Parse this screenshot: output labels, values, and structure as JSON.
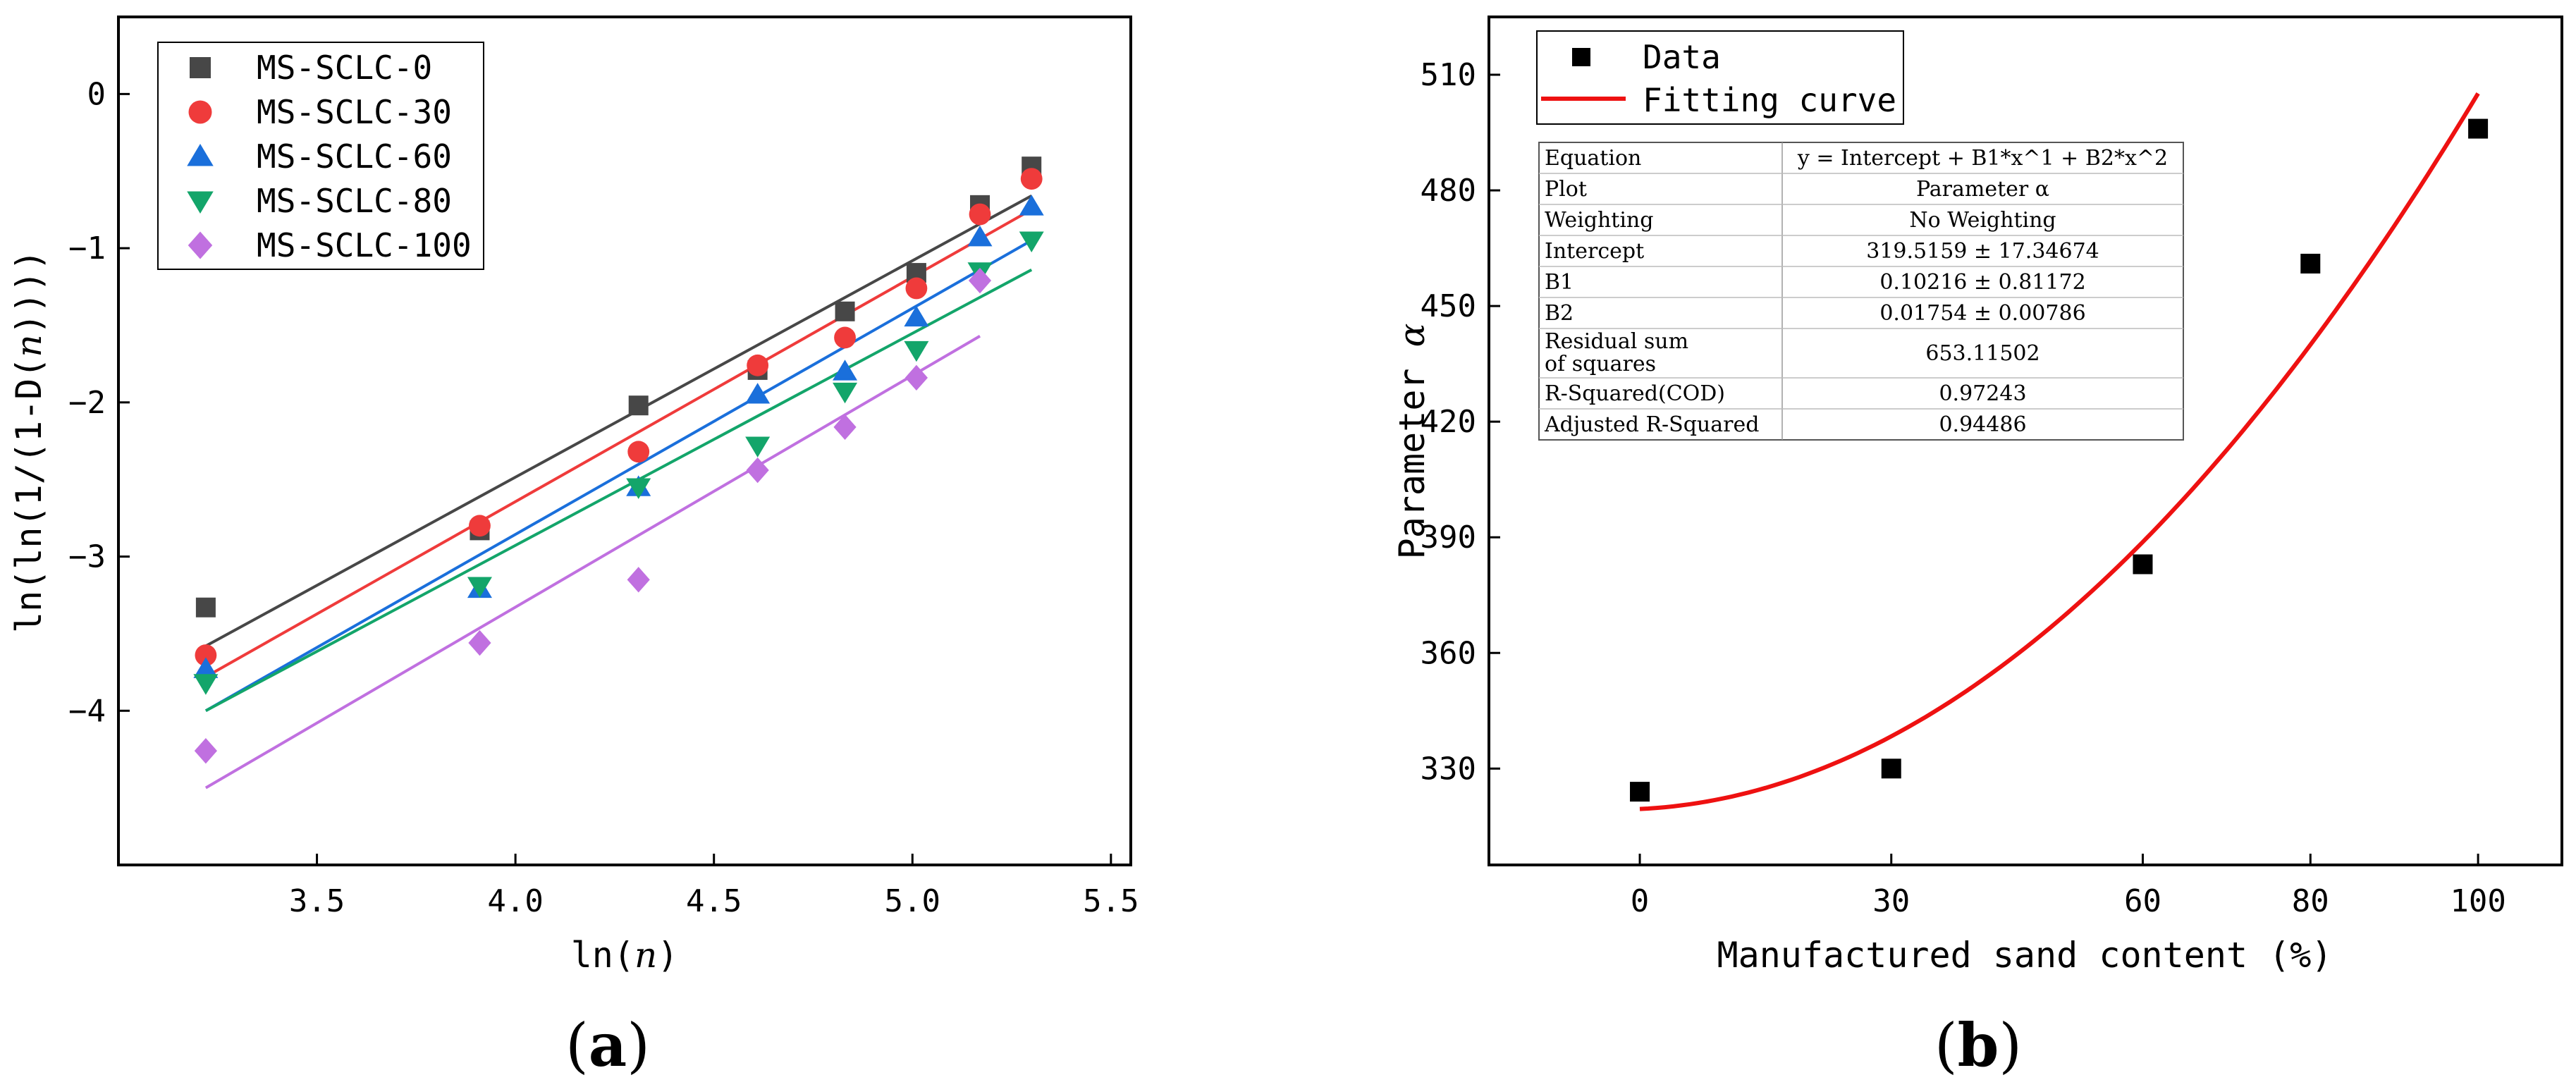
{
  "chart_data": [
    {
      "panel_label": "a",
      "type": "scatter",
      "xlabel_prefix": "ln(",
      "xlabel_var": "n",
      "xlabel_suffix": ")",
      "ylabel_prefix": "ln(ln(1/(1-D(",
      "ylabel_var": "n",
      "ylabel_suffix": "))))",
      "xlim": [
        3.0,
        5.55
      ],
      "ylim": [
        -5.0,
        0.5
      ],
      "xticks": [
        3.5,
        4.0,
        4.5,
        5.0,
        5.5
      ],
      "xtick_labels": [
        "3.5",
        "4.0",
        "4.5",
        "5.0",
        "5.5"
      ],
      "yticks": [
        0,
        -1,
        -2,
        -3,
        -4
      ],
      "ytick_labels": [
        "0",
        "−1",
        "−2",
        "−3",
        "−4"
      ],
      "legend_position": "top-left",
      "x": [
        3.22,
        3.91,
        4.31,
        4.61,
        4.83,
        5.01,
        5.17,
        5.3
      ],
      "series": [
        {
          "name": "MS-SCLC-0",
          "marker": "square",
          "color": "#474747",
          "values": [
            -3.33,
            -2.83,
            -2.02,
            -1.79,
            -1.41,
            -1.16,
            -0.72,
            -0.47
          ],
          "fit": {
            "x": [
              3.22,
              5.3
            ],
            "y": [
              -3.58,
              -0.66
            ]
          }
        },
        {
          "name": "MS-SCLC-30",
          "marker": "circle",
          "color": "#ef3b3b",
          "values": [
            -3.64,
            -2.8,
            -2.32,
            -1.76,
            -1.58,
            -1.26,
            -0.78,
            -0.55
          ],
          "fit": {
            "x": [
              3.22,
              5.3
            ],
            "y": [
              -3.78,
              -0.75
            ]
          }
        },
        {
          "name": "MS-SCLC-60",
          "marker": "triangle-up",
          "color": "#1a6fdb",
          "values": [
            -3.73,
            -3.21,
            -2.55,
            -1.95,
            -1.8,
            -1.45,
            -0.93,
            -0.73
          ],
          "fit": {
            "x": [
              3.22,
              5.3
            ],
            "y": [
              -4.0,
              -0.95
            ]
          }
        },
        {
          "name": "MS-SCLC-80",
          "marker": "triangle-down",
          "color": "#13a56a",
          "values": [
            -3.82,
            -3.19,
            -2.55,
            -2.28,
            -1.93,
            -1.66,
            -1.15,
            -0.95
          ],
          "fit": {
            "x": [
              3.22,
              5.3
            ],
            "y": [
              -4.0,
              -1.14
            ]
          }
        },
        {
          "name": "MS-SCLC-100",
          "marker": "diamond",
          "color": "#c070e0",
          "values": [
            -4.26,
            -3.56,
            -3.15,
            -2.44,
            -2.16,
            -1.84,
            -1.21,
            null
          ],
          "fit": {
            "x": [
              3.22,
              5.17
            ],
            "y": [
              -4.5,
              -1.57
            ]
          }
        }
      ]
    },
    {
      "panel_label": "b",
      "type": "scatter",
      "xlabel": "Manufactured sand content (%)",
      "ylabel_prefix": "Parameter  ",
      "ylabel_var": "α",
      "xlim": [
        -18,
        110
      ],
      "ylim": [
        305,
        525
      ],
      "xticks": [
        0,
        30,
        60,
        80,
        100
      ],
      "xtick_labels": [
        "0",
        "30",
        "60",
        "80",
        "100"
      ],
      "yticks": [
        330,
        360,
        390,
        420,
        450,
        480,
        510
      ],
      "ytick_labels": [
        "330",
        "360",
        "390",
        "420",
        "450",
        "480",
        "510"
      ],
      "legend_position": "top-left",
      "legend": [
        "Data",
        "Fitting curve"
      ],
      "data_color": "#000000",
      "fit_color": "#ee1111",
      "x": [
        0,
        30,
        60,
        80,
        100
      ],
      "values": [
        324,
        330,
        383,
        461,
        496
      ],
      "fit": {
        "intercept": 319.5159,
        "b1": 0.10216,
        "b2": 0.01754,
        "x_range": [
          0,
          100
        ]
      },
      "table": [
        [
          "Equation",
          "y = Intercept + B1*x^1 + B2*x^2"
        ],
        [
          "Plot",
          "Parameter  α"
        ],
        [
          "Weighting",
          "No Weighting"
        ],
        [
          "Intercept",
          "319.5159 ± 17.34674"
        ],
        [
          "B1",
          "0.10216 ± 0.81172"
        ],
        [
          "B2",
          "0.01754 ± 0.00786"
        ],
        [
          "Residual sum\nof squares",
          "653.11502"
        ],
        [
          "R-Squared(COD)",
          "0.97243"
        ],
        [
          "Adjusted R-Squared",
          "0.94486"
        ]
      ]
    }
  ]
}
